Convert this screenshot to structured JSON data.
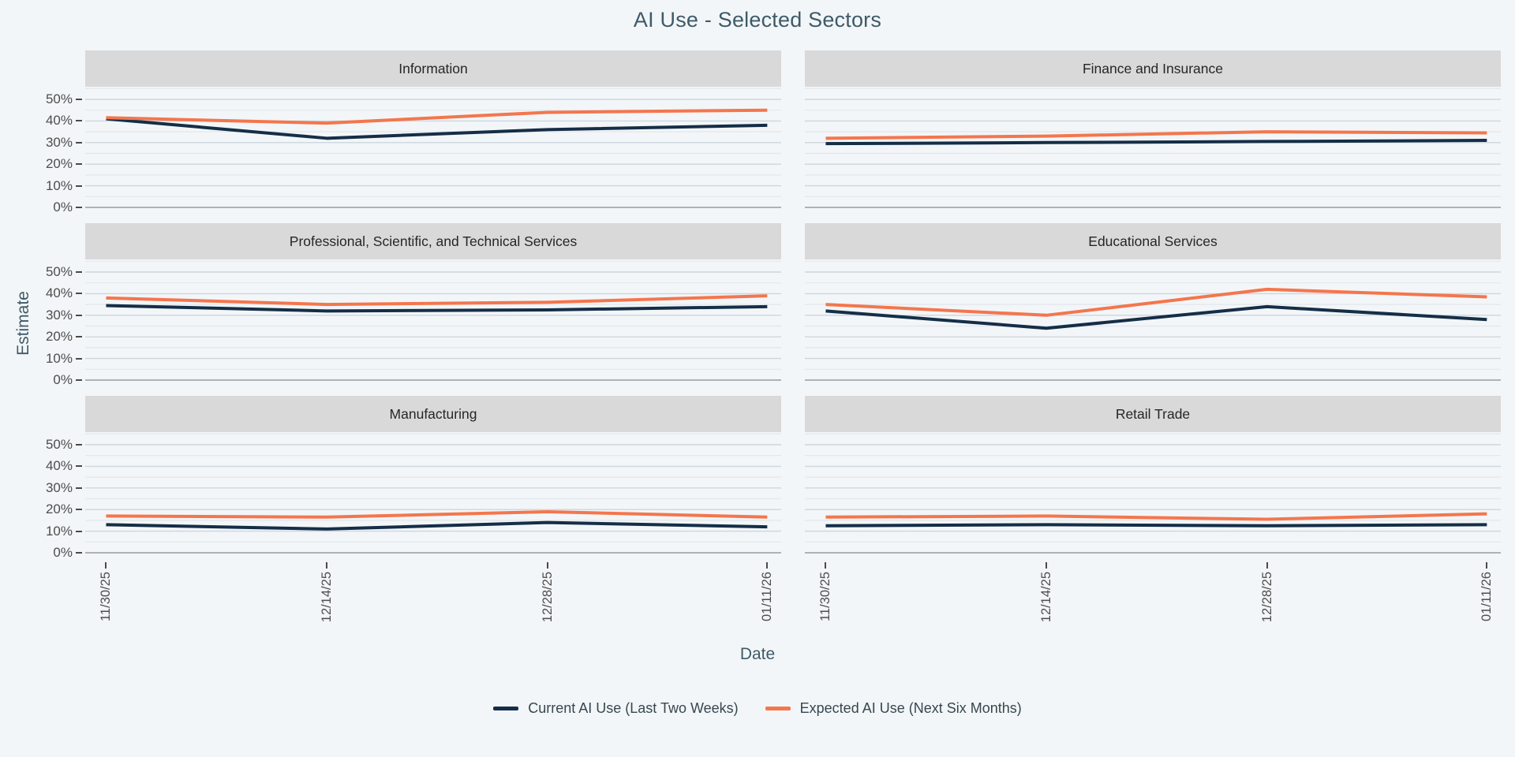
{
  "title": "AI Use - Selected Sectors",
  "y_axis_title": "Estimate",
  "x_axis_title": "Date",
  "legend": {
    "items": [
      {
        "label": "Current AI Use (Last Two Weeks)",
        "series": "current",
        "color": "#152e47"
      },
      {
        "label": "Expected AI Use (Next Six Months)",
        "series": "expected",
        "color": "#f4764d"
      }
    ]
  },
  "colors": {
    "current_line": "#152e47",
    "expected_line": "#f4764d",
    "facet_header_bg": "#d9d9d9",
    "background": "#f3f6f8",
    "gridline_minor": "#e1e7ed",
    "gridline_major": "#ccd6de",
    "zero_line": "#9a9a9a",
    "tick_text": "#4d4d4d",
    "title_text": "#3e5a69"
  },
  "chart_data": {
    "type": "line",
    "x": [
      "11/30/25",
      "12/14/25",
      "12/28/25",
      "01/11/26"
    ],
    "y_ticks_pct": [
      0,
      10,
      20,
      30,
      40,
      50
    ],
    "y_tick_labels": [
      "0%",
      "10%",
      "20%",
      "30%",
      "40%",
      "50%"
    ],
    "ylim": [
      0,
      55
    ],
    "grid": "on",
    "legend_position": "bottom",
    "facets": [
      {
        "title": "Information",
        "series": [
          {
            "name": "Current AI Use (Last Two Weeks)",
            "values": [
              41,
              32,
              36,
              38
            ]
          },
          {
            "name": "Expected AI Use (Next Six Months)",
            "values": [
              41.5,
              39,
              44,
              45
            ]
          }
        ]
      },
      {
        "title": "Finance and Insurance",
        "series": [
          {
            "name": "Current AI Use (Last Two Weeks)",
            "values": [
              29.5,
              30,
              30.5,
              31
            ]
          },
          {
            "name": "Expected AI Use (Next Six Months)",
            "values": [
              32,
              33,
              35,
              34.5
            ]
          }
        ]
      },
      {
        "title": "Professional, Scientific, and Technical Services",
        "series": [
          {
            "name": "Current AI Use (Last Two Weeks)",
            "values": [
              34.5,
              32,
              32.5,
              34
            ]
          },
          {
            "name": "Expected AI Use (Next Six Months)",
            "values": [
              38,
              35,
              36,
              39
            ]
          }
        ]
      },
      {
        "title": "Educational Services",
        "series": [
          {
            "name": "Current AI Use (Last Two Weeks)",
            "values": [
              32,
              24,
              34,
              28
            ]
          },
          {
            "name": "Expected AI Use (Next Six Months)",
            "values": [
              35,
              30,
              42,
              38.5
            ]
          }
        ]
      },
      {
        "title": "Manufacturing",
        "series": [
          {
            "name": "Current AI Use (Last Two Weeks)",
            "values": [
              13,
              11,
              14,
              12
            ]
          },
          {
            "name": "Expected AI Use (Next Six Months)",
            "values": [
              17,
              16.5,
              19,
              16.5
            ]
          }
        ]
      },
      {
        "title": "Retail Trade",
        "series": [
          {
            "name": "Current AI Use (Last Two Weeks)",
            "values": [
              12.5,
              13,
              12.5,
              13
            ]
          },
          {
            "name": "Expected AI Use (Next Six Months)",
            "values": [
              16.5,
              17,
              15.5,
              18
            ]
          }
        ]
      }
    ]
  }
}
